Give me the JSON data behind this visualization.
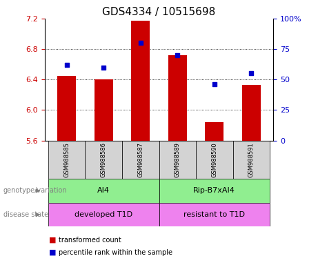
{
  "title": "GDS4334 / 10515698",
  "samples": [
    "GSM988585",
    "GSM988586",
    "GSM988587",
    "GSM988589",
    "GSM988590",
    "GSM988591"
  ],
  "bar_values": [
    6.45,
    6.4,
    7.17,
    6.72,
    5.84,
    6.33
  ],
  "percentile_values": [
    62,
    60,
    80,
    70,
    46,
    55
  ],
  "ylim_left": [
    5.6,
    7.2
  ],
  "ylim_right": [
    0,
    100
  ],
  "yticks_left": [
    5.6,
    6.0,
    6.4,
    6.8,
    7.2
  ],
  "yticks_right": [
    0,
    25,
    50,
    75,
    100
  ],
  "bar_color": "#cc0000",
  "dot_color": "#0000cc",
  "bar_width": 0.5,
  "genotype_labels": [
    "AI4",
    "Rip-B7xAI4"
  ],
  "genotype_color": "#90ee90",
  "disease_labels": [
    "developed T1D",
    "resistant to T1D"
  ],
  "disease_color": "#ee82ee",
  "sample_bg_color": "#d3d3d3",
  "legend_bar_label": "transformed count",
  "legend_dot_label": "percentile rank within the sample",
  "title_fontsize": 11,
  "axis_label_color_left": "#cc0000",
  "axis_label_color_right": "#0000cc",
  "gridline_ticks": [
    6.0,
    6.4,
    6.8
  ]
}
